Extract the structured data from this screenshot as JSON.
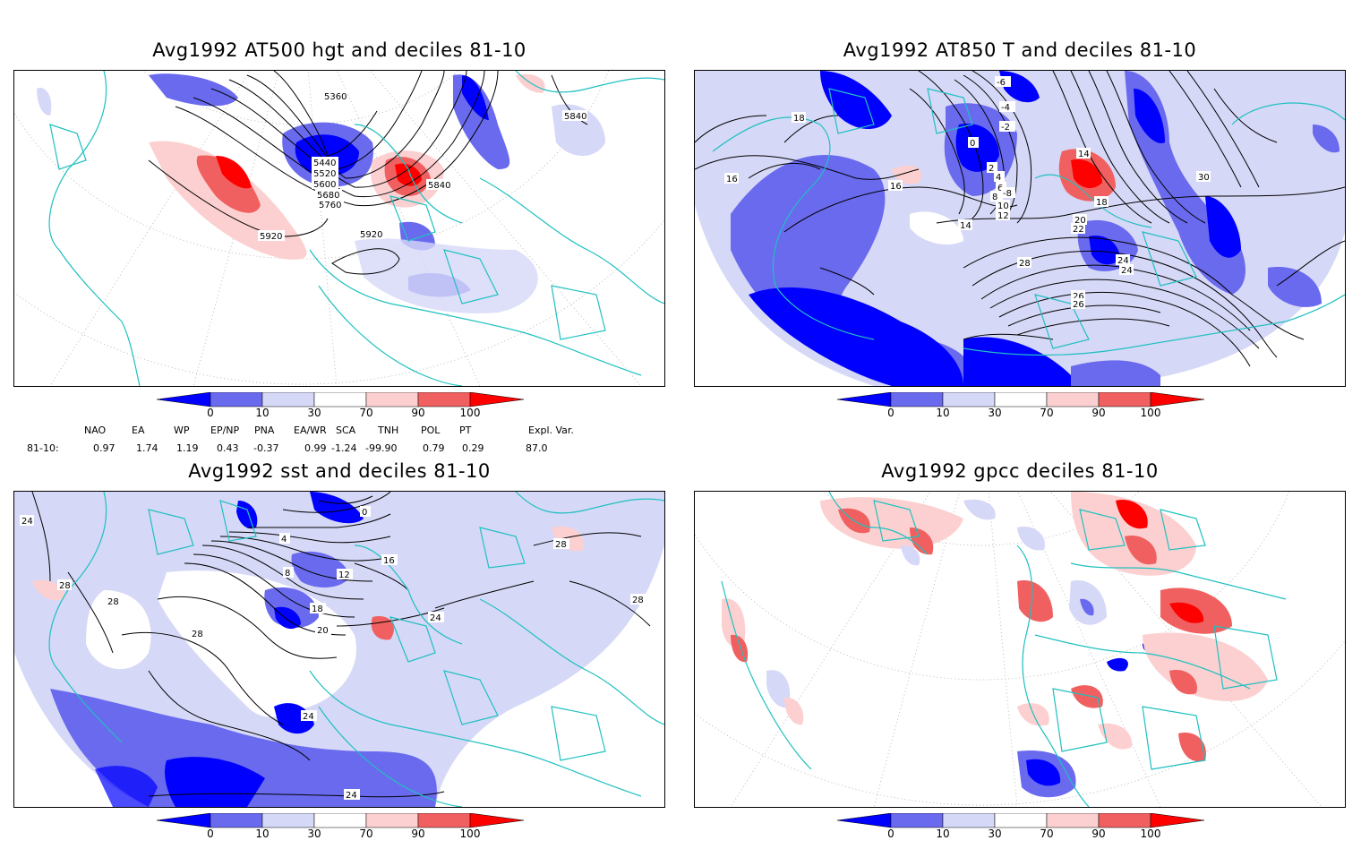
{
  "panels": [
    {
      "title": "Avg1992 AT500 hgt and deciles 81-10",
      "contour_labels": [
        "5360",
        "5840",
        "5440",
        "5520",
        "5600",
        "5680",
        "5760",
        "5840",
        "5920",
        "5920"
      ]
    },
    {
      "title": "Avg1992 AT850 T and deciles 81-10",
      "contour_labels": [
        "-6",
        "-4",
        "-2",
        "0",
        "2",
        "4",
        "6",
        "8",
        "10",
        "12",
        "14",
        "16",
        "18",
        "20",
        "22",
        "24",
        "26",
        "28",
        "30",
        "-8",
        "16",
        "18",
        "24",
        "26",
        "14"
      ]
    },
    {
      "title": "Avg1992 sst and deciles 81-10",
      "contour_labels": [
        "24",
        "28",
        "28",
        "28",
        "0",
        "4",
        "8",
        "12",
        "16",
        "18",
        "20",
        "24",
        "24",
        "28",
        "28",
        "24"
      ]
    },
    {
      "title": "Avg1992 gpcc deciles 81-10",
      "contour_labels": []
    }
  ],
  "colorbar": {
    "ticks": [
      "0",
      "10",
      "30",
      "70",
      "90",
      "100"
    ],
    "colors": [
      "#0000ff",
      "#6a6aef",
      "#d6d8f7",
      "#ffffff",
      "#fcd0d0",
      "#f06060",
      "#ff0000"
    ]
  },
  "indices": {
    "headers": [
      "NAO",
      "EA",
      "WP",
      "EP/NP",
      "PNA",
      "EA/WR",
      "SCA",
      "TNH",
      "POL",
      "PT",
      "Expl. Var."
    ],
    "row_label": "81-10:",
    "values": [
      "0.97",
      "1.74",
      "1.19",
      "0.43",
      "-0.37",
      "0.99",
      "-1.24",
      "-99.90",
      "0.79",
      "0.29",
      "87.0"
    ]
  }
}
